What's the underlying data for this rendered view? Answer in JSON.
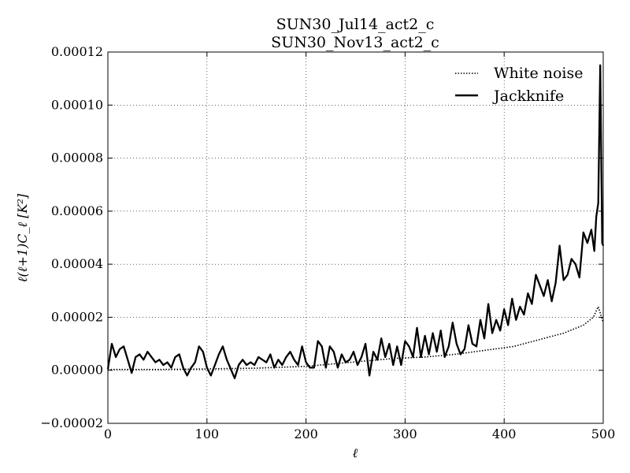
{
  "chart_data": {
    "type": "line",
    "title_line1": "SUN30_Jul14_act2_c",
    "title_line2": "SUN30_Nov13_act2_c",
    "xlabel": "ℓ",
    "ylabel": "ℓ(ℓ+1)C_ℓ [K²]",
    "xlim": [
      0,
      500
    ],
    "ylim": [
      -2e-05,
      0.00012
    ],
    "grid": true,
    "legend_position": "top-right",
    "x_ticks": [
      "0",
      "100",
      "200",
      "300",
      "400",
      "500"
    ],
    "x_tick_values": [
      0,
      100,
      200,
      300,
      400,
      500
    ],
    "y_ticks": [
      "−0.00002",
      "0.00000",
      "0.00002",
      "0.00004",
      "0.00006",
      "0.00008",
      "0.00010",
      "0.00012"
    ],
    "y_tick_values": [
      -2e-05,
      0,
      2e-05,
      4e-05,
      6e-05,
      8e-05,
      0.0001,
      0.00012
    ],
    "series": [
      {
        "name": "White noise",
        "style": "dotted",
        "color": "#000000",
        "x": [
          0,
          50,
          100,
          150,
          200,
          230,
          260,
          290,
          320,
          350,
          380,
          410,
          440,
          460,
          480,
          490,
          495,
          500
        ],
        "y": [
          3e-07,
          3e-07,
          5e-07,
          8e-07,
          1.5e-06,
          2.5e-06,
          3.5e-06,
          4.5e-06,
          5e-06,
          6e-06,
          7.5e-06,
          9e-06,
          1.2e-05,
          1.4e-05,
          1.7e-05,
          2e-05,
          2.4e-05,
          1.8e-05
        ]
      },
      {
        "name": "Jackknife",
        "style": "solid",
        "color": "#000000",
        "x": [
          0,
          4,
          8,
          12,
          16,
          20,
          24,
          28,
          32,
          36,
          40,
          44,
          48,
          52,
          56,
          60,
          64,
          68,
          72,
          76,
          80,
          84,
          88,
          92,
          96,
          100,
          104,
          108,
          112,
          116,
          120,
          124,
          128,
          132,
          136,
          140,
          144,
          148,
          152,
          156,
          160,
          164,
          168,
          172,
          176,
          180,
          184,
          188,
          192,
          196,
          200,
          204,
          208,
          212,
          216,
          220,
          224,
          228,
          232,
          236,
          240,
          244,
          248,
          252,
          256,
          260,
          264,
          268,
          272,
          276,
          280,
          284,
          288,
          292,
          296,
          300,
          304,
          308,
          312,
          316,
          320,
          324,
          328,
          332,
          336,
          340,
          344,
          348,
          352,
          356,
          360,
          364,
          368,
          372,
          376,
          380,
          384,
          388,
          392,
          396,
          400,
          404,
          408,
          412,
          416,
          420,
          424,
          428,
          432,
          436,
          440,
          444,
          448,
          452,
          456,
          460,
          464,
          468,
          472,
          476,
          480,
          484,
          488,
          491,
          493,
          495,
          496,
          497,
          498,
          499,
          500
        ],
        "y": [
          5e-07,
          1e-05,
          5e-06,
          8e-06,
          9e-06,
          4e-06,
          -1e-06,
          5e-06,
          6e-06,
          4e-06,
          7e-06,
          5e-06,
          3e-06,
          4e-06,
          2e-06,
          3e-06,
          1e-06,
          5e-06,
          6e-06,
          1e-06,
          -2e-06,
          1e-06,
          3e-06,
          9e-06,
          7e-06,
          1e-06,
          -2e-06,
          2e-06,
          6e-06,
          9e-06,
          4e-06,
          5e-07,
          -3e-06,
          2e-06,
          4e-06,
          2e-06,
          3e-06,
          2e-06,
          5e-06,
          4e-06,
          3e-06,
          6e-06,
          1e-06,
          4e-06,
          2e-06,
          5e-06,
          7e-06,
          4e-06,
          2e-06,
          9e-06,
          3e-06,
          1e-06,
          1e-06,
          1.1e-05,
          9e-06,
          1e-06,
          9e-06,
          7e-06,
          1e-06,
          6e-06,
          3e-06,
          4e-06,
          7e-06,
          2e-06,
          5e-06,
          1e-05,
          -2e-06,
          7e-06,
          4e-06,
          1.2e-05,
          5e-06,
          1e-05,
          2e-06,
          9e-06,
          2e-06,
          1.1e-05,
          9e-06,
          5e-06,
          1.6e-05,
          5e-06,
          1.3e-05,
          6e-06,
          1.4e-05,
          7e-06,
          1.5e-05,
          5e-06,
          9e-06,
          1.8e-05,
          1e-05,
          6e-06,
          8e-06,
          1.7e-05,
          1e-05,
          9e-06,
          1.9e-05,
          1.2e-05,
          2.5e-05,
          1.4e-05,
          1.9e-05,
          1.5e-05,
          2.3e-05,
          1.7e-05,
          2.7e-05,
          1.9e-05,
          2.4e-05,
          2.1e-05,
          2.9e-05,
          2.5e-05,
          3.6e-05,
          3.2e-05,
          2.8e-05,
          3.4e-05,
          2.6e-05,
          3.3e-05,
          4.7e-05,
          3.4e-05,
          3.6e-05,
          4.2e-05,
          4e-05,
          3.5e-05,
          5.2e-05,
          4.8e-05,
          5.3e-05,
          4.5e-05,
          5.8e-05,
          6.3e-05,
          9e-05,
          0.000115,
          8e-05,
          4.8e-05,
          4.7e-05
        ]
      }
    ]
  }
}
